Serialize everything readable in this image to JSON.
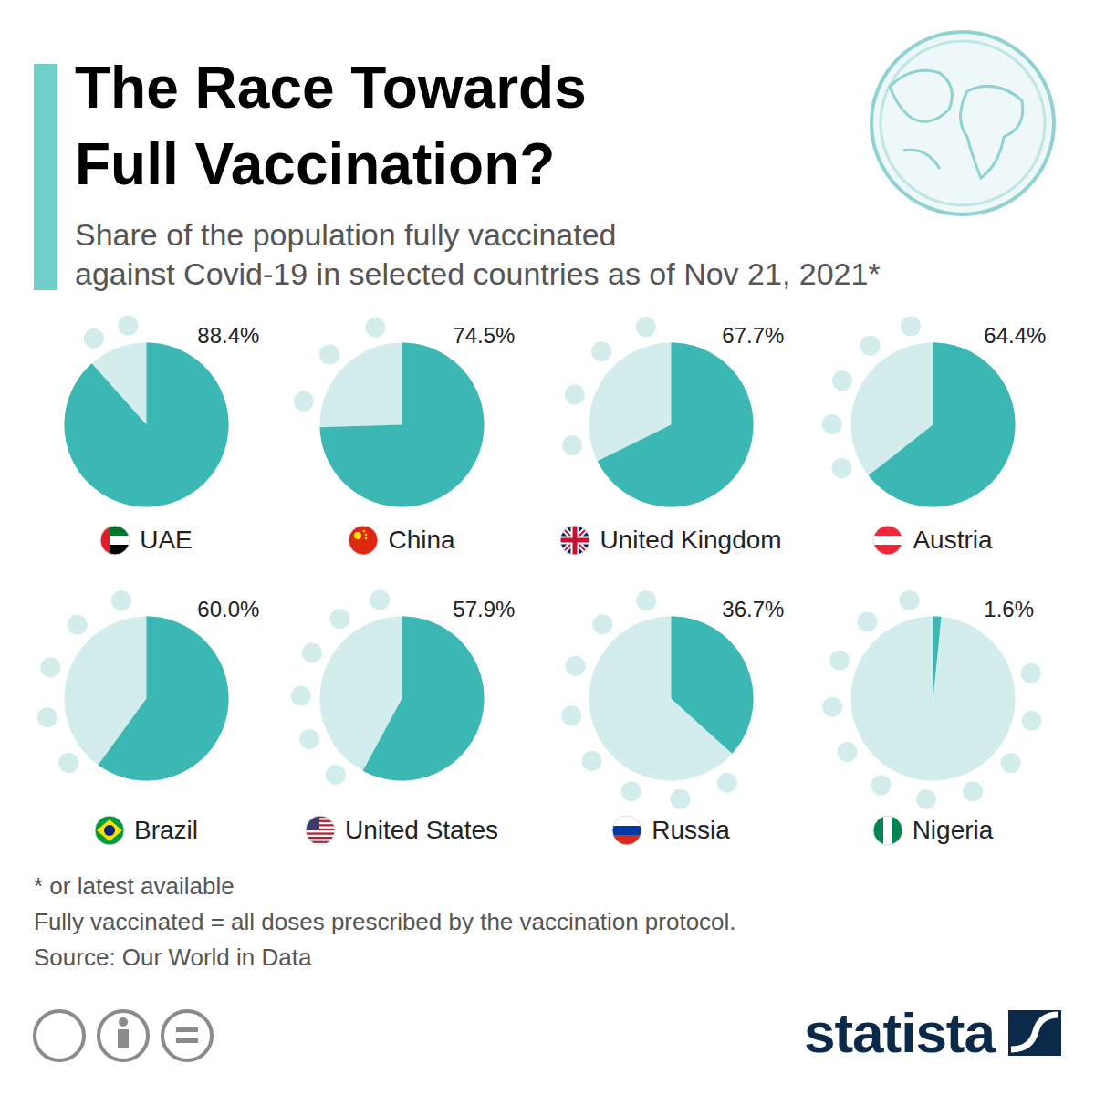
{
  "chart_data": {
    "type": "pie",
    "title": "The Race Towards\nFull Vaccination?",
    "subtitle": "Share of the population fully vaccinated\nagainst Covid-19 in selected countries as of Nov 21, 2021*",
    "categories": [
      "UAE",
      "China",
      "United Kingdom",
      "Austria",
      "Brazil",
      "United States",
      "Russia",
      "Nigeria"
    ],
    "values": [
      88.4,
      74.5,
      67.7,
      64.4,
      60.0,
      57.9,
      36.7,
      1.6
    ],
    "value_labels": [
      "88.4%",
      "74.5%",
      "67.7%",
      "64.4%",
      "60.0%",
      "57.9%",
      "36.7%",
      "1.6%"
    ],
    "color": "#3bb8b4",
    "data_labels": true,
    "tick_labels": false,
    "notes": [
      "* or latest available",
      "Fully vaccinated = all doses prescribed by the vaccination protocol.",
      "Source: Our World in Data"
    ],
    "brand": "statista"
  }
}
